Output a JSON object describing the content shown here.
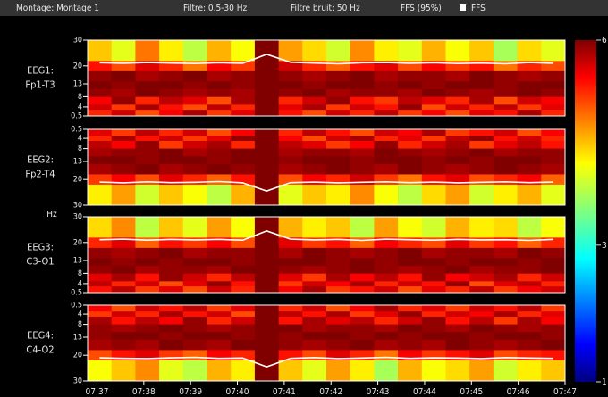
{
  "header": {
    "montage": "Montage: Montage 1",
    "filter": "Filtre: 0.5-30 Hz",
    "noise_filter": "Filtre bruit: 50 Hz",
    "sef_label": "FFS (95%)",
    "legend": "FFS"
  },
  "ylabel": "Hz",
  "colorbar": {
    "clim": [
      1,
      6
    ],
    "ticks": [
      6,
      3,
      1
    ]
  },
  "chart_data": [
    {
      "type": "heatmap",
      "label": [
        "EEG1:",
        "Fp1-T3"
      ],
      "ylim": [
        0.5,
        30
      ],
      "yticks": [
        30,
        20,
        13,
        8,
        4,
        0.5
      ],
      "xlim": [
        456.8,
        467
      ],
      "x": [
        456.8,
        457.31,
        457.82,
        458.33,
        458.84,
        459.35,
        459.86,
        460.37,
        460.88,
        461.39,
        461.9,
        462.41,
        462.92,
        463.43,
        463.94,
        464.45,
        464.96,
        465.47,
        465.98,
        466.49
      ],
      "ybins": [
        0.5,
        3,
        5,
        8,
        11,
        14,
        18,
        22,
        30
      ],
      "z": [
        [
          5.2,
          5.6,
          5.0,
          5.4,
          5.8,
          5.1,
          5.5,
          6,
          5.3,
          5.0,
          5.6,
          5.2,
          5.7,
          5.1,
          5.4,
          5.0,
          5.5,
          5.3,
          5.8,
          5.2
        ],
        [
          5.6,
          5.1,
          5.8,
          5.3,
          5.0,
          5.7,
          5.2,
          6,
          5.5,
          5.8,
          5.1,
          5.6,
          5.3,
          5.9,
          5.0,
          5.6,
          5.2,
          5.7,
          5.1,
          5.5
        ],
        [
          5.4,
          5.9,
          5.2,
          5.7,
          5.5,
          5.0,
          5.8,
          6,
          5.2,
          5.6,
          5.9,
          5.3,
          5.1,
          5.7,
          5.5,
          5.2,
          5.8,
          5.0,
          5.6,
          5.4
        ],
        [
          5.9,
          5.8,
          6,
          5.9,
          5.8,
          5.9,
          5.8,
          6,
          5.9,
          6,
          5.8,
          5.9,
          5.9,
          5.8,
          6,
          5.9,
          5.8,
          5.9,
          6,
          5.9
        ],
        [
          6,
          5.9,
          6,
          6,
          5.9,
          6,
          5.9,
          6,
          6,
          5.9,
          6,
          6,
          5.9,
          6,
          5.9,
          6,
          6,
          5.9,
          6,
          6
        ],
        [
          5.9,
          6,
          5.8,
          5.9,
          6,
          5.8,
          5.9,
          6,
          5.9,
          5.8,
          5.9,
          6,
          5.8,
          5.9,
          5.9,
          5.8,
          6,
          5.9,
          5.8,
          5.9
        ],
        [
          5.3,
          5.0,
          5.5,
          5.2,
          4.8,
          5.4,
          5.1,
          6,
          5.6,
          5.2,
          4.9,
          5.3,
          5.5,
          5.0,
          5.4,
          5.1,
          5.3,
          4.8,
          5.2,
          5.0
        ],
        [
          4.4,
          4.0,
          4.8,
          4.2,
          3.8,
          4.5,
          4.1,
          6,
          4.6,
          4.3,
          3.9,
          4.7,
          4.2,
          4.0,
          4.5,
          4.1,
          4.4,
          3.7,
          4.3,
          4.0
        ]
      ],
      "sef": [
        21.2,
        21.0,
        21.3,
        21.1,
        20.9,
        21.2,
        21.0,
        24.5,
        21.4,
        21.1,
        20.8,
        21.2,
        21.3,
        21.0,
        21.2,
        20.9,
        21.1,
        20.8,
        21.3,
        21.0
      ]
    },
    {
      "type": "heatmap",
      "label": [
        "EEG2:",
        "Fp2-T4"
      ],
      "ylim": [
        30,
        0.5
      ],
      "yticks": [
        0.5,
        4,
        8,
        13,
        20,
        30
      ],
      "xlim": [
        456.8,
        467
      ],
      "x": [
        456.8,
        457.31,
        457.82,
        458.33,
        458.84,
        459.35,
        459.86,
        460.37,
        460.88,
        461.39,
        461.9,
        462.41,
        462.92,
        463.43,
        463.94,
        464.45,
        464.96,
        465.47,
        465.98,
        466.49
      ],
      "ybins": [
        0.5,
        3,
        5,
        8,
        11,
        14,
        18,
        22,
        30
      ],
      "z": [
        [
          5.5,
          5.1,
          5.7,
          5.2,
          5.6,
          5.0,
          5.4,
          6,
          5.2,
          5.7,
          5.3,
          5.0,
          5.6,
          5.4,
          5.8,
          5.1,
          5.3,
          5.6,
          5.0,
          5.4
        ],
        [
          5.2,
          5.8,
          5.3,
          5.6,
          5.1,
          5.5,
          5.9,
          6,
          5.4,
          5.0,
          5.6,
          5.8,
          5.2,
          5.5,
          5.1,
          5.7,
          5.9,
          5.3,
          5.6,
          5.2
        ],
        [
          5.7,
          5.4,
          5.9,
          5.1,
          5.6,
          5.8,
          5.2,
          6,
          5.7,
          5.5,
          5.1,
          5.4,
          5.9,
          5.2,
          5.6,
          5.8,
          5.1,
          5.5,
          5.7,
          5.3
        ],
        [
          5.8,
          5.9,
          5.9,
          6,
          5.8,
          5.9,
          6,
          6,
          5.8,
          5.9,
          5.9,
          5.8,
          6,
          5.9,
          5.8,
          5.9,
          6,
          5.8,
          5.9,
          5.9
        ],
        [
          6,
          6,
          5.9,
          6,
          6,
          5.9,
          6,
          6,
          5.9,
          6,
          6,
          5.9,
          6,
          6,
          5.9,
          6,
          5.9,
          6,
          6,
          5.9
        ],
        [
          5.8,
          5.9,
          6,
          5.8,
          5.9,
          6,
          5.9,
          6,
          5.8,
          5.9,
          6,
          5.9,
          5.8,
          6,
          5.9,
          5.8,
          5.9,
          6,
          5.9,
          5.8
        ],
        [
          5.1,
          5.4,
          5.0,
          5.5,
          5.2,
          4.9,
          5.3,
          6,
          5.0,
          5.4,
          5.2,
          5.6,
          5.1,
          4.8,
          5.3,
          5.5,
          5.0,
          5.2,
          5.4,
          4.9
        ],
        [
          4.2,
          4.6,
          3.9,
          4.4,
          4.1,
          3.8,
          4.5,
          6,
          4.0,
          4.4,
          4.2,
          4.7,
          4.1,
          3.8,
          4.3,
          4.6,
          3.9,
          4.2,
          4.5,
          4.0
        ]
      ],
      "sef": [
        21.0,
        21.3,
        20.9,
        21.2,
        21.1,
        20.8,
        21.3,
        24.5,
        21.2,
        21.0,
        21.3,
        21.1,
        20.9,
        21.2,
        21.0,
        21.3,
        21.1,
        20.9,
        21.2,
        21.0
      ]
    },
    {
      "type": "heatmap",
      "label": [
        "EEG3:",
        "C3-O1"
      ],
      "ylim": [
        0.5,
        30
      ],
      "yticks": [
        30,
        20,
        13,
        8,
        4,
        0.5
      ],
      "xlim": [
        456.8,
        467
      ],
      "x": [
        456.8,
        457.31,
        457.82,
        458.33,
        458.84,
        459.35,
        459.86,
        460.37,
        460.88,
        461.39,
        461.9,
        462.41,
        462.92,
        463.43,
        463.94,
        464.45,
        464.96,
        465.47,
        465.98,
        466.49
      ],
      "ybins": [
        0.5,
        3,
        5,
        8,
        11,
        14,
        18,
        22,
        30
      ],
      "z": [
        [
          5.3,
          5.7,
          5.1,
          5.5,
          5.0,
          5.6,
          5.2,
          6,
          5.4,
          5.8,
          5.1,
          5.3,
          5.6,
          5.0,
          5.5,
          5.2,
          5.7,
          5.1,
          5.4,
          5.6
        ],
        [
          5.7,
          5.2,
          5.6,
          5.0,
          5.5,
          5.9,
          5.3,
          6,
          5.1,
          5.6,
          5.4,
          5.8,
          5.2,
          5.6,
          5.3,
          5.9,
          5.0,
          5.5,
          5.7,
          5.2
        ],
        [
          5.5,
          5.8,
          5.3,
          5.9,
          5.6,
          5.2,
          5.7,
          6,
          5.5,
          5.1,
          5.8,
          5.4,
          5.7,
          5.3,
          5.9,
          5.4,
          5.6,
          5.8,
          5.2,
          5.6
        ],
        [
          5.9,
          6,
          5.8,
          5.9,
          5.9,
          5.8,
          6,
          6,
          5.9,
          5.8,
          5.9,
          6,
          5.9,
          5.8,
          5.9,
          6,
          5.8,
          5.9,
          5.9,
          6
        ],
        [
          6,
          5.9,
          6,
          5.9,
          6,
          6,
          5.9,
          6,
          6,
          6,
          5.9,
          6,
          5.9,
          6,
          6,
          5.9,
          6,
          6,
          5.9,
          6
        ],
        [
          5.9,
          5.8,
          5.9,
          6,
          5.8,
          5.9,
          5.9,
          6,
          5.8,
          6,
          5.9,
          5.8,
          5.9,
          6,
          5.8,
          5.9,
          5.9,
          5.8,
          6,
          5.9
        ],
        [
          5.2,
          5.5,
          4.9,
          5.3,
          5.1,
          5.4,
          5.0,
          6,
          5.5,
          5.1,
          5.3,
          4.9,
          5.4,
          5.2,
          5.0,
          5.5,
          5.1,
          5.3,
          4.9,
          5.2
        ],
        [
          4.3,
          4.7,
          3.8,
          4.4,
          4.0,
          4.6,
          4.1,
          6,
          4.5,
          4.2,
          4.4,
          3.8,
          4.6,
          4.1,
          3.9,
          4.5,
          4.2,
          4.3,
          3.8,
          4.1
        ]
      ],
      "sef": [
        21.1,
        21.3,
        20.9,
        21.2,
        21.0,
        21.2,
        20.9,
        24.5,
        21.3,
        21.0,
        21.2,
        20.8,
        21.3,
        21.1,
        20.9,
        21.2,
        21.0,
        21.1,
        20.8,
        21.2
      ]
    },
    {
      "type": "heatmap",
      "label": [
        "EEG4:",
        "C4-O2"
      ],
      "ylim": [
        30,
        0.5
      ],
      "yticks": [
        0.5,
        4,
        8,
        13,
        20,
        30
      ],
      "xlim": [
        456.8,
        467
      ],
      "x": [
        456.8,
        457.31,
        457.82,
        458.33,
        458.84,
        459.35,
        459.86,
        460.37,
        460.88,
        461.39,
        461.9,
        462.41,
        462.92,
        463.43,
        463.94,
        464.45,
        464.96,
        465.47,
        465.98,
        466.49
      ],
      "ybins": [
        0.5,
        3,
        5,
        8,
        11,
        14,
        18,
        22,
        30
      ],
      "z": [
        [
          5.4,
          5.0,
          5.6,
          5.3,
          5.7,
          5.1,
          5.5,
          6,
          5.2,
          5.6,
          5.0,
          5.4,
          5.8,
          5.2,
          5.5,
          5.1,
          5.6,
          5.3,
          5.7,
          5.1
        ],
        [
          5.1,
          5.6,
          5.2,
          5.8,
          5.3,
          5.6,
          5.0,
          6,
          5.7,
          5.3,
          5.8,
          5.1,
          5.5,
          5.9,
          5.2,
          5.6,
          5.4,
          5.8,
          5.2,
          5.5
        ],
        [
          5.8,
          5.3,
          5.7,
          5.4,
          5.9,
          5.2,
          5.6,
          6,
          5.3,
          5.8,
          5.5,
          5.7,
          5.2,
          5.6,
          5.9,
          5.3,
          5.7,
          5.1,
          5.8,
          5.4
        ],
        [
          5.9,
          5.8,
          5.9,
          6,
          5.9,
          5.8,
          5.9,
          6,
          6,
          5.8,
          5.9,
          5.9,
          5.8,
          6,
          5.9,
          5.8,
          6,
          5.9,
          5.8,
          5.9
        ],
        [
          5.9,
          6,
          6,
          5.9,
          6,
          6,
          5.9,
          6,
          5.9,
          6,
          6,
          5.9,
          6,
          5.9,
          6,
          6,
          5.9,
          6,
          6,
          5.9
        ],
        [
          5.8,
          5.9,
          5.8,
          6,
          5.9,
          5.8,
          6,
          6,
          5.9,
          5.8,
          5.9,
          6,
          5.8,
          5.9,
          5.8,
          6,
          5.9,
          5.8,
          5.9,
          6
        ],
        [
          5.0,
          5.3,
          5.5,
          5.1,
          4.9,
          5.4,
          5.2,
          6,
          5.3,
          5.0,
          5.5,
          5.2,
          4.8,
          5.4,
          5.1,
          5.3,
          5.5,
          5.0,
          5.2,
          5.3
        ],
        [
          4.1,
          4.4,
          4.7,
          4.0,
          3.8,
          4.5,
          4.2,
          6,
          4.4,
          4.0,
          4.6,
          4.2,
          3.7,
          4.5,
          4.1,
          4.3,
          4.6,
          3.9,
          4.2,
          4.4
        ]
      ],
      "sef": [
        21.0,
        21.2,
        21.3,
        21.0,
        20.8,
        21.2,
        21.1,
        24.5,
        21.2,
        20.9,
        21.3,
        21.1,
        20.8,
        21.2,
        21.0,
        21.1,
        21.3,
        20.9,
        21.1,
        21.2
      ],
      "xticks": [
        {
          "value": 457,
          "label": "07:37"
        },
        {
          "value": 458,
          "label": "07:38"
        },
        {
          "value": 459,
          "label": "07:39"
        },
        {
          "value": 460,
          "label": "07:40"
        },
        {
          "value": 461,
          "label": "07:41"
        },
        {
          "value": 462,
          "label": "07:42"
        },
        {
          "value": 463,
          "label": "07:43"
        },
        {
          "value": 464,
          "label": "07:44"
        },
        {
          "value": 465,
          "label": "07:45"
        },
        {
          "value": 466,
          "label": "07:46"
        },
        {
          "value": 467,
          "label": "07:47"
        }
      ]
    }
  ]
}
